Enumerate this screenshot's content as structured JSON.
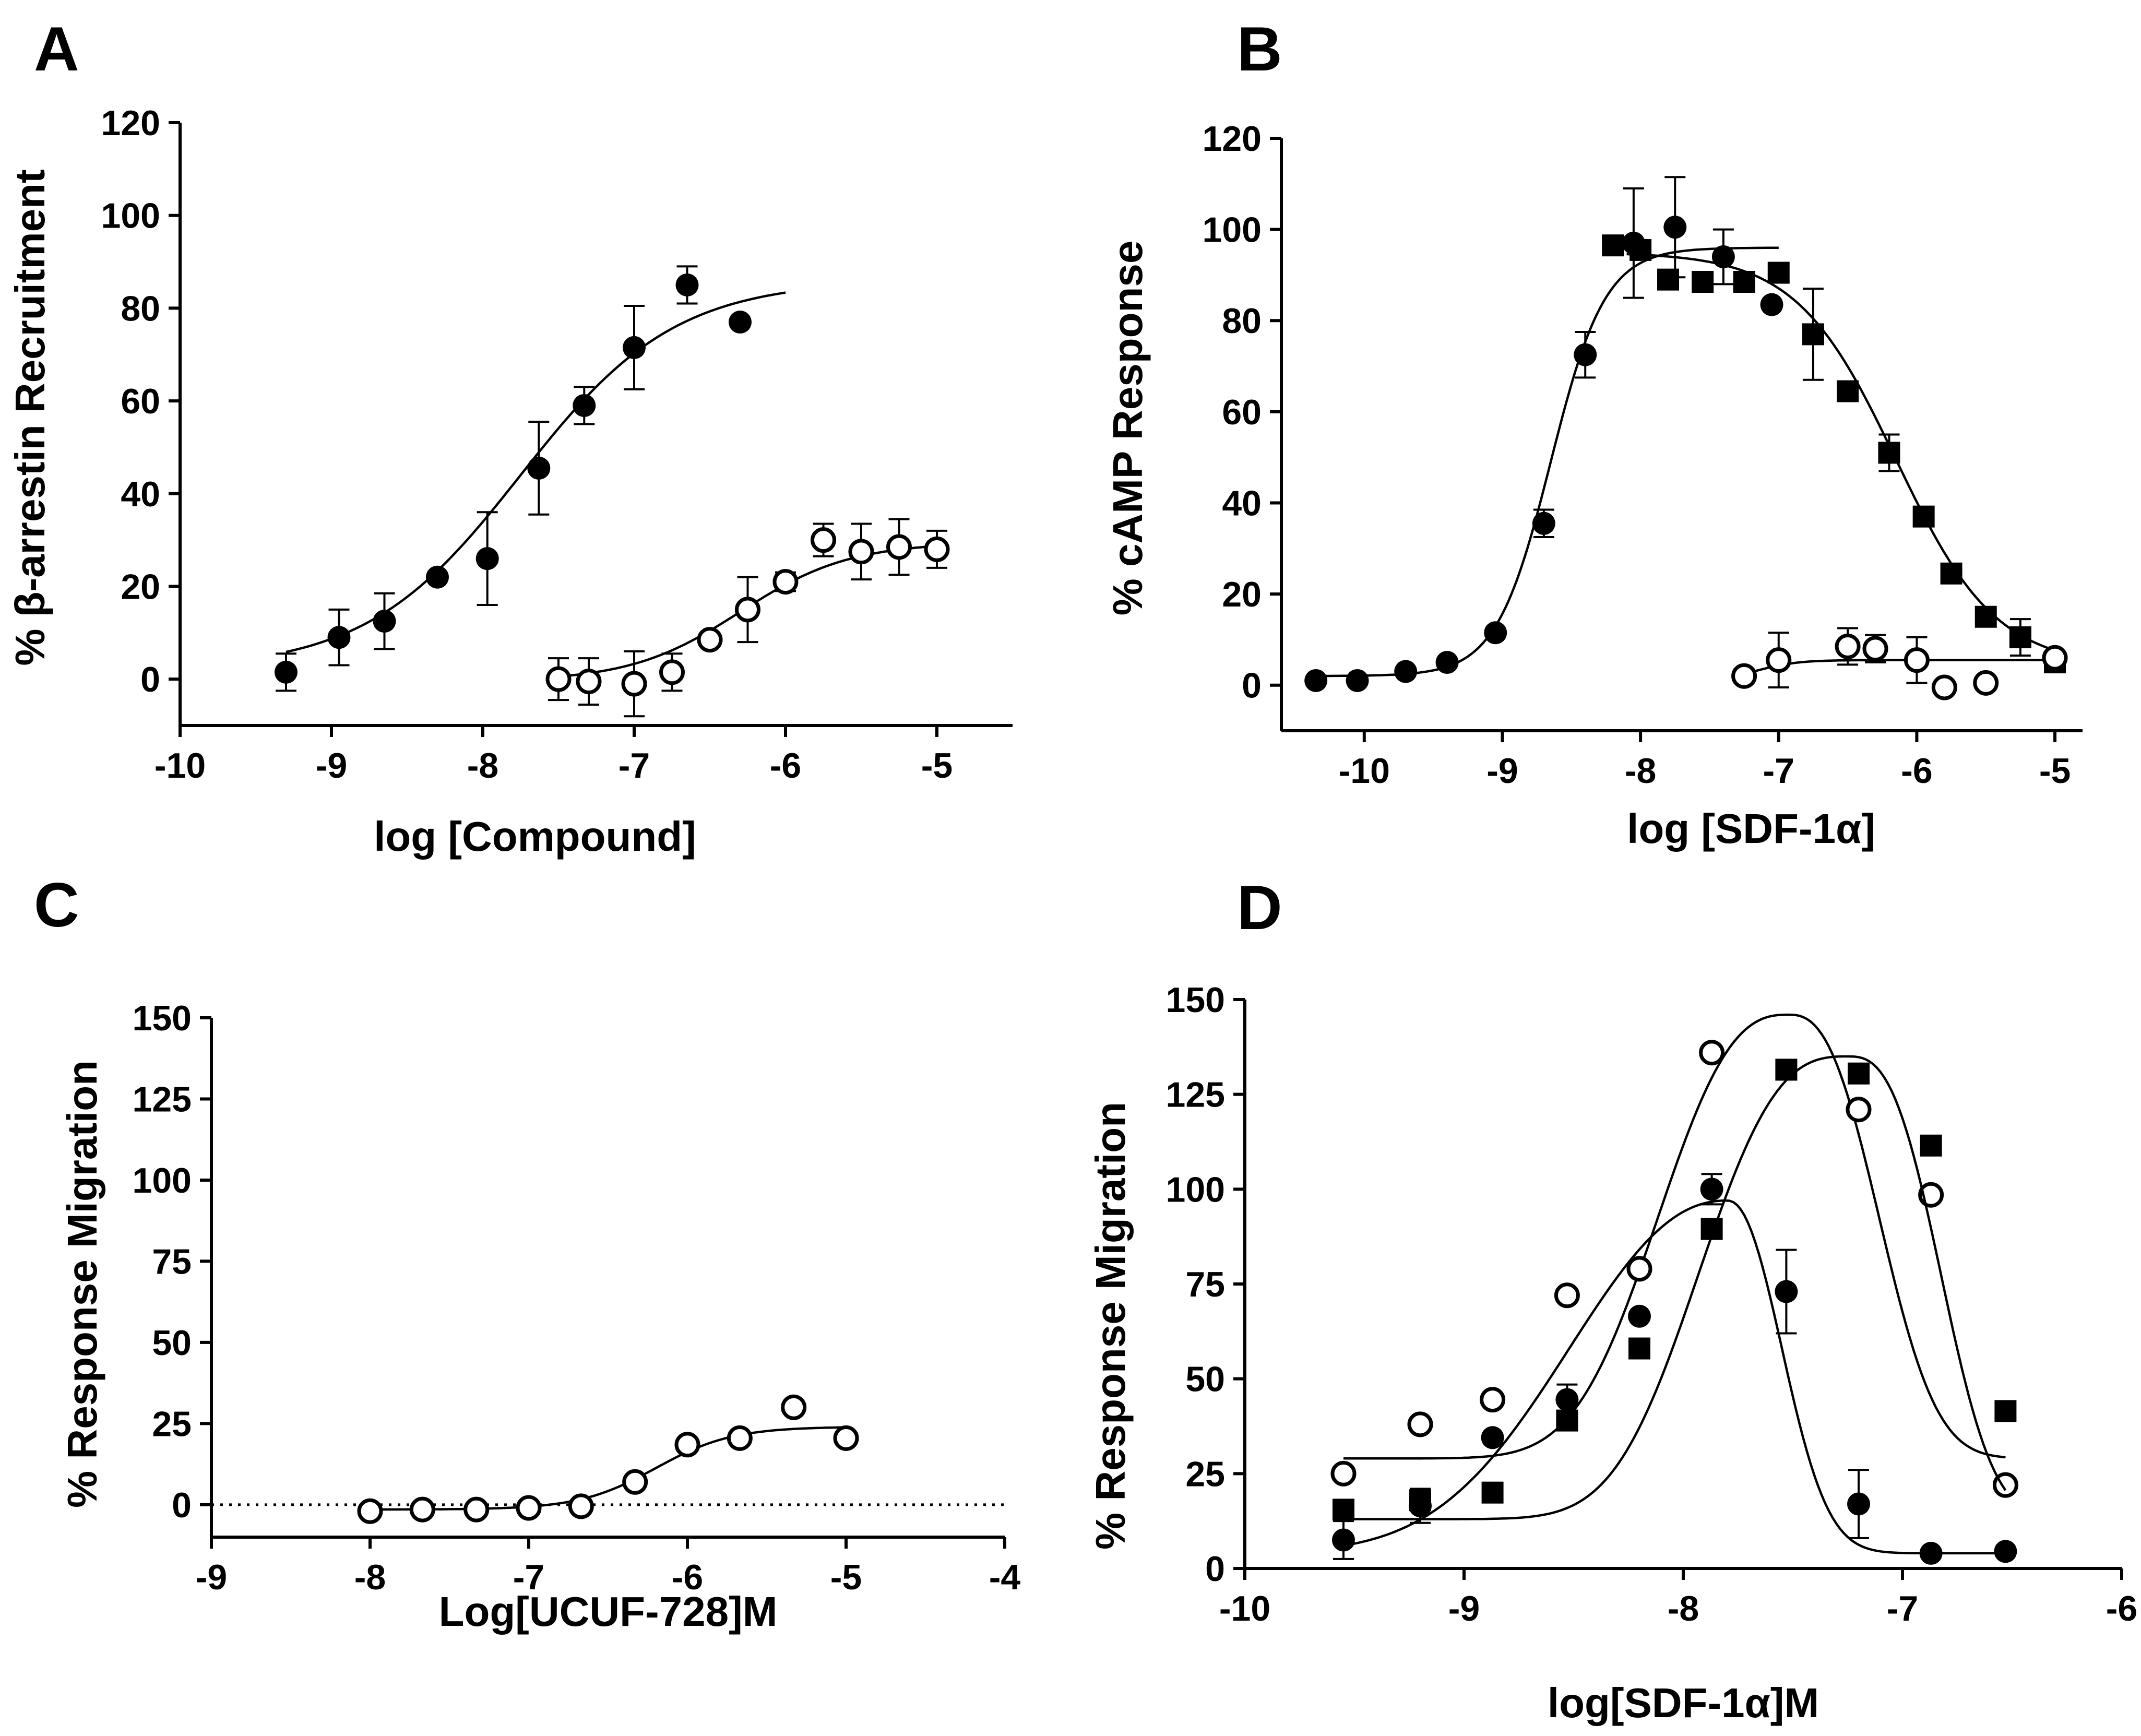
{
  "chart_data": [
    {
      "panel": "A",
      "type": "scatter",
      "title": "",
      "xlabel": "log [Compound]",
      "ylabel": "% β-arrestin Recruitment",
      "xlim": [
        -10,
        -4.5
      ],
      "ylim": [
        -10,
        120
      ],
      "xticks": [
        -10,
        -9,
        -8,
        -7,
        -6,
        -5
      ],
      "xtick_labels": [
        "-10",
        "-9",
        "-8",
        "-7",
        "-6",
        "-5"
      ],
      "yticks": [
        0,
        20,
        40,
        60,
        80,
        100,
        120
      ],
      "ytick_labels": [
        "0",
        "20",
        "40",
        "60",
        "80",
        "100",
        "120"
      ],
      "series": [
        {
          "name": "filled circles",
          "marker": "circle-filled",
          "x": [
            -9.3,
            -8.95,
            -8.65,
            -8.3,
            -7.97,
            -7.63,
            -7.33,
            -7.0,
            -6.65,
            -6.3
          ],
          "y": [
            1.5,
            9,
            12.5,
            22,
            26,
            45.5,
            59,
            71.5,
            85,
            77
          ],
          "err": [
            4,
            6,
            6,
            0,
            10,
            10,
            4,
            9,
            4,
            0
          ],
          "fit": {
            "kind": "sigmoid",
            "bottom": 2,
            "top": 86,
            "ec50": -7.75,
            "hill": 0.85,
            "x_range": [
              -9.3,
              -6.0
            ]
          }
        },
        {
          "name": "open circles",
          "marker": "circle-open",
          "x": [
            -7.5,
            -7.3,
            -7.0,
            -6.75,
            -6.5,
            -6.25,
            -6.0,
            -5.75,
            -5.5,
            -5.25,
            -5.0
          ],
          "y": [
            0,
            -0.5,
            -1,
            1.5,
            8.5,
            15,
            21,
            30,
            27.5,
            28.5,
            28
          ],
          "err": [
            4.5,
            5,
            7,
            4,
            1,
            7,
            2,
            3.5,
            6,
            6,
            4
          ],
          "fit": {
            "kind": "sigmoid",
            "bottom": -0.5,
            "top": 29.5,
            "ec50": -6.3,
            "hill": 1.2,
            "x_range": [
              -7.5,
              -5.0
            ]
          }
        }
      ]
    },
    {
      "panel": "B",
      "type": "scatter",
      "title": "",
      "xlabel": "log [SDF-1α]",
      "ylabel": "% cAMP Response",
      "xlim": [
        -10.6,
        -4.8
      ],
      "ylim": [
        -10,
        120
      ],
      "xticks": [
        -10,
        -9,
        -8,
        -7,
        -6,
        -5
      ],
      "xtick_labels": [
        "-10",
        "-9",
        "-8",
        "-7",
        "-6",
        "-5"
      ],
      "yticks": [
        0,
        20,
        40,
        60,
        80,
        100,
        120
      ],
      "ytick_labels": [
        "0",
        "20",
        "40",
        "60",
        "80",
        "100",
        "120"
      ],
      "series": [
        {
          "name": "filled circles",
          "marker": "circle-filled",
          "x": [
            -10.35,
            -10.05,
            -9.7,
            -9.4,
            -9.05,
            -8.7,
            -8.4,
            -8.05,
            -7.75,
            -7.4,
            -7.05
          ],
          "y": [
            1,
            1,
            3,
            5,
            11.5,
            35.5,
            72.5,
            97,
            100.5,
            94,
            83.5
          ],
          "err": [
            0,
            0,
            0,
            0,
            0,
            3,
            5,
            12,
            11,
            6,
            0
          ],
          "fit": {
            "kind": "sigmoid",
            "bottom": 2,
            "top": 96,
            "ec50": -8.65,
            "hill": 2.2,
            "x_range": [
              -10.35,
              -7.0
            ]
          }
        },
        {
          "name": "filled squares",
          "marker": "square-filled",
          "x": [
            -8.2,
            -8.0,
            -7.8,
            -7.55,
            -7.25,
            -7.0,
            -6.75,
            -6.5,
            -6.2,
            -5.95,
            -5.75,
            -5.5,
            -5.25,
            -5.0
          ],
          "y": [
            96.5,
            95.5,
            89,
            88.5,
            88.5,
            90.5,
            77,
            64.5,
            51,
            37,
            24.5,
            15,
            10.5,
            5
          ],
          "err": [
            0,
            0,
            0,
            0,
            2,
            0,
            10,
            0,
            4,
            0,
            0,
            0,
            4,
            0
          ],
          "fit": {
            "kind": "sigmoid",
            "bottom": 4,
            "top": 95,
            "ec50": -6.15,
            "hill": -1.2,
            "x_range": [
              -8.1,
              -5.0
            ]
          }
        },
        {
          "name": "open circles",
          "marker": "circle-open",
          "x": [
            -7.25,
            -7.0,
            -6.5,
            -6.3,
            -6.0,
            -5.8,
            -5.5,
            -5.0
          ],
          "y": [
            2,
            5.5,
            8.5,
            8,
            5.5,
            -0.5,
            0.5,
            6
          ],
          "err": [
            1.5,
            6,
            4,
            3,
            5,
            0,
            0,
            0
          ],
          "fit": {
            "kind": "sigmoid",
            "bottom": 1,
            "top": 5.5,
            "ec50": -7.15,
            "hill": 3,
            "x_range": [
              -7.25,
              -5.0
            ]
          }
        }
      ]
    },
    {
      "panel": "C",
      "type": "scatter",
      "title": "",
      "xlabel": "Log[UCUF-728]M",
      "ylabel": "% Response Migration",
      "xlim": [
        -9,
        -4
      ],
      "ylim": [
        -10,
        150
      ],
      "xticks": [
        -9,
        -8,
        -7,
        -6,
        -5,
        -4
      ],
      "xtick_labels": [
        "-9",
        "-8",
        "-7",
        "-6",
        "-5",
        "-4"
      ],
      "yticks": [
        0,
        25,
        50,
        75,
        100,
        125,
        150
      ],
      "ytick_labels": [
        "0",
        "25",
        "50",
        "75",
        "100",
        "125",
        "150"
      ],
      "reference_line": {
        "y": 0,
        "style": "dotted",
        "x_range": [
          -9,
          -4
        ]
      },
      "series": [
        {
          "name": "open circles",
          "marker": "circle-open",
          "x": [
            -8.0,
            -7.67,
            -7.33,
            -7.0,
            -6.67,
            -6.33,
            -6.0,
            -5.67,
            -5.33,
            -5.0
          ],
          "y": [
            -2,
            -1.5,
            -1.5,
            -1,
            -0.5,
            7,
            18.5,
            20.5,
            30,
            20.5
          ],
          "err": [
            0,
            0,
            0,
            0,
            0,
            0,
            0,
            0,
            0,
            0
          ],
          "fit": {
            "kind": "sigmoid",
            "bottom": -1.5,
            "top": 24,
            "ec50": -6.2,
            "hill": 1.8,
            "x_range": [
              -8.0,
              -5.0
            ]
          }
        }
      ]
    },
    {
      "panel": "D",
      "type": "scatter",
      "title": "",
      "xlabel": "log[SDF-1α]M",
      "ylabel": "% Response Migration",
      "xlim": [
        -10,
        -6
      ],
      "ylim": [
        0,
        150
      ],
      "xticks": [
        -10,
        -9,
        -8,
        -7,
        -6
      ],
      "xtick_labels": [
        "-10",
        "-9",
        "-8",
        "-7",
        "-6"
      ],
      "yticks": [
        0,
        25,
        50,
        75,
        100,
        125,
        150
      ],
      "ytick_labels": [
        "0",
        "25",
        "50",
        "75",
        "100",
        "125",
        "150"
      ],
      "series": [
        {
          "name": "open circles",
          "marker": "circle-open",
          "x": [
            -9.55,
            -9.2,
            -8.87,
            -8.53,
            -8.2,
            -7.87,
            -7.2,
            -6.87,
            -6.53
          ],
          "y": [
            25,
            38,
            44.5,
            72,
            79,
            136,
            121,
            98.5,
            22
          ],
          "err": [
            0,
            0,
            0,
            0,
            0,
            0,
            0,
            0,
            0
          ],
          "fit": {
            "kind": "bell",
            "baseline": 29,
            "peak": 146,
            "center": -7.52,
            "width_left": 0.72,
            "width_right": 0.5,
            "power": 2.6,
            "x_range": [
              -9.55,
              -6.53
            ]
          }
        },
        {
          "name": "filled squares",
          "marker": "square-filled",
          "x": [
            -9.55,
            -9.2,
            -8.87,
            -8.53,
            -8.2,
            -7.87,
            -7.53,
            -7.2,
            -6.87,
            -6.53
          ],
          "y": [
            15.5,
            18,
            20,
            39,
            58,
            89.5,
            131.5,
            130.5,
            111.5,
            41.5
          ],
          "err": [
            0,
            0,
            0,
            0,
            0,
            0,
            0,
            0,
            0,
            0
          ],
          "fit": {
            "kind": "bell",
            "baseline": 13,
            "peak": 135,
            "center": -7.25,
            "width_left": 0.8,
            "width_right": 0.5,
            "power": 2.8,
            "x_range": [
              -9.55,
              -6.53
            ]
          }
        },
        {
          "name": "filled circles",
          "marker": "circle-filled",
          "x": [
            -9.55,
            -9.2,
            -8.87,
            -8.53,
            -8.2,
            -7.87,
            -7.53,
            -7.2,
            -6.87,
            -6.53
          ],
          "y": [
            7.5,
            16.5,
            34.5,
            44.5,
            66.5,
            100,
            73,
            17,
            4,
            4.5
          ],
          "err": [
            5,
            4.5,
            0,
            4,
            0,
            4,
            11,
            9,
            0,
            0
          ],
          "fit": {
            "kind": "bell",
            "baseline": 4,
            "peak": 97,
            "center": -7.8,
            "width_left": 0.95,
            "width_right": 0.33,
            "power": 2.2,
            "x_range": [
              -9.55,
              -6.53
            ]
          }
        }
      ]
    }
  ]
}
